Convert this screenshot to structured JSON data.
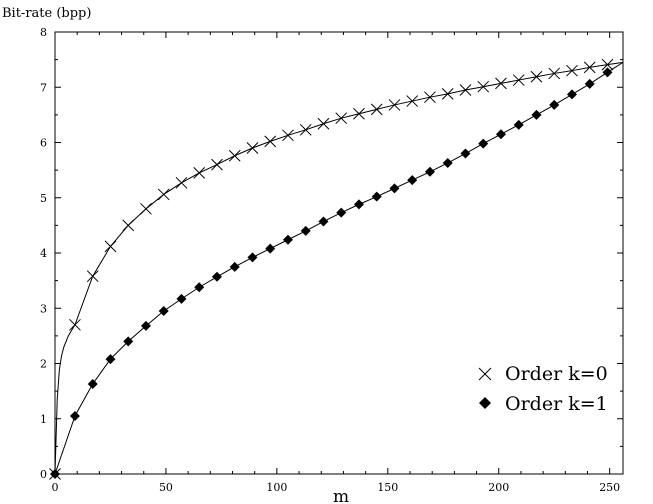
{
  "chart_data": {
    "type": "line",
    "title": "",
    "ylabel": "Bit-rate (bpp)",
    "xlabel": "m",
    "xlim": [
      0,
      256
    ],
    "ylim": [
      0,
      8
    ],
    "xticks": [
      0,
      50,
      100,
      150,
      200,
      250
    ],
    "yticks": [
      0,
      1,
      2,
      3,
      4,
      5,
      6,
      7,
      8
    ],
    "grid": false,
    "legend_position": "bottom-right",
    "series": [
      {
        "name": "Order k=0",
        "marker": "x",
        "x": [
          0,
          1,
          2,
          3,
          4,
          6,
          9,
          17,
          25,
          33,
          41,
          49,
          57,
          65,
          73,
          81,
          89,
          97,
          105,
          113,
          121,
          129,
          137,
          145,
          153,
          161,
          169,
          177,
          185,
          193,
          201,
          209,
          217,
          225,
          233,
          241,
          249,
          256
        ],
        "y": [
          0,
          1.35,
          1.9,
          2.15,
          2.3,
          2.5,
          2.7,
          3.58,
          4.12,
          4.5,
          4.8,
          5.06,
          5.27,
          5.45,
          5.6,
          5.76,
          5.9,
          6.02,
          6.13,
          6.23,
          6.34,
          6.44,
          6.52,
          6.6,
          6.68,
          6.75,
          6.82,
          6.88,
          6.95,
          7.01,
          7.07,
          7.13,
          7.19,
          7.25,
          7.3,
          7.36,
          7.41,
          7.45
        ],
        "marker_x": [
          0,
          9,
          17,
          25,
          33,
          41,
          49,
          57,
          65,
          73,
          81,
          89,
          97,
          105,
          113,
          121,
          129,
          137,
          145,
          153,
          161,
          169,
          177,
          185,
          193,
          201,
          209,
          217,
          225,
          233,
          241,
          249
        ],
        "color": "#000000"
      },
      {
        "name": "Order k=1",
        "marker": "diamond",
        "x": [
          0,
          9,
          17,
          25,
          33,
          41,
          49,
          57,
          65,
          73,
          81,
          89,
          97,
          105,
          113,
          121,
          129,
          137,
          145,
          153,
          161,
          169,
          177,
          185,
          193,
          201,
          209,
          217,
          225,
          233,
          241,
          249,
          256
        ],
        "y": [
          0,
          1.05,
          1.63,
          2.08,
          2.4,
          2.68,
          2.95,
          3.17,
          3.38,
          3.57,
          3.75,
          3.92,
          4.08,
          4.24,
          4.4,
          4.57,
          4.73,
          4.88,
          5.02,
          5.17,
          5.32,
          5.47,
          5.63,
          5.8,
          5.98,
          6.15,
          6.32,
          6.5,
          6.68,
          6.87,
          7.06,
          7.27,
          7.45
        ],
        "marker_x": [
          0,
          9,
          17,
          25,
          33,
          41,
          49,
          57,
          65,
          73,
          81,
          89,
          97,
          105,
          113,
          121,
          129,
          137,
          145,
          153,
          161,
          169,
          177,
          185,
          193,
          201,
          209,
          217,
          225,
          233,
          241,
          249
        ],
        "color": "#000000"
      }
    ]
  }
}
